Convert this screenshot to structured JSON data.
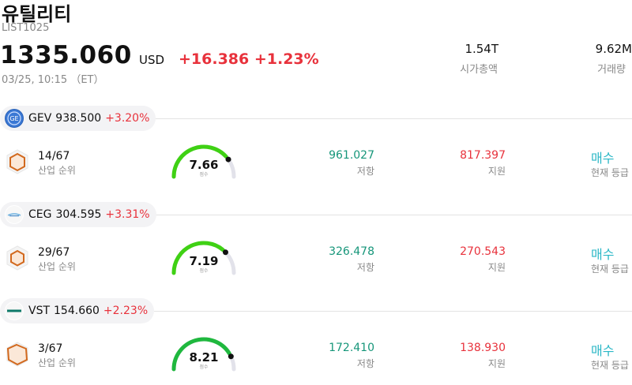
{
  "header": {
    "title": "유틸리티",
    "code": "LIST1025",
    "price": "1335.060",
    "currency": "USD",
    "change": "+16.386 +1.23%",
    "time": "03/25, 10:15 （ET）",
    "market_cap_value": "1.54T",
    "market_cap_label": "시가총액",
    "volume_value": "9.62M",
    "volume_label": "거래량"
  },
  "colors": {
    "up_red": "#e8323c",
    "resistance_green": "#16967a",
    "buy_teal": "#2ab7c6",
    "gauge_green": "#3fd114"
  },
  "stocks": [
    {
      "ticker": "GEV",
      "price": "938.500",
      "change": "+3.20%",
      "logo_icon": "ge-vernova-logo-icon",
      "rank": "14/67",
      "rank_label": "산업 순위",
      "score": "7.66",
      "score_level": 0.766,
      "score_label": "점수",
      "resistance": "961.027",
      "resistance_label": "저항",
      "support": "817.397",
      "support_label": "지원",
      "rating": "매수",
      "rating_label": "현재 등급"
    },
    {
      "ticker": "CEG",
      "price": "304.595",
      "change": "+3.31%",
      "logo_icon": "constellation-logo-icon",
      "rank": "29/67",
      "rank_label": "산업 순위",
      "score": "7.19",
      "score_level": 0.719,
      "score_label": "점수",
      "resistance": "326.478",
      "resistance_label": "저항",
      "support": "270.543",
      "support_label": "지원",
      "rating": "매수",
      "rating_label": "현재 등급"
    },
    {
      "ticker": "VST",
      "price": "154.660",
      "change": "+2.23%",
      "logo_icon": "vistra-logo-icon",
      "rank": "3/67",
      "rank_label": "산업 순위",
      "score": "8.21",
      "score_level": 0.821,
      "score_label": "점수",
      "resistance": "172.410",
      "resistance_label": "저항",
      "support": "138.930",
      "support_label": "지원",
      "rating": "매수",
      "rating_label": "현재 등급"
    }
  ]
}
